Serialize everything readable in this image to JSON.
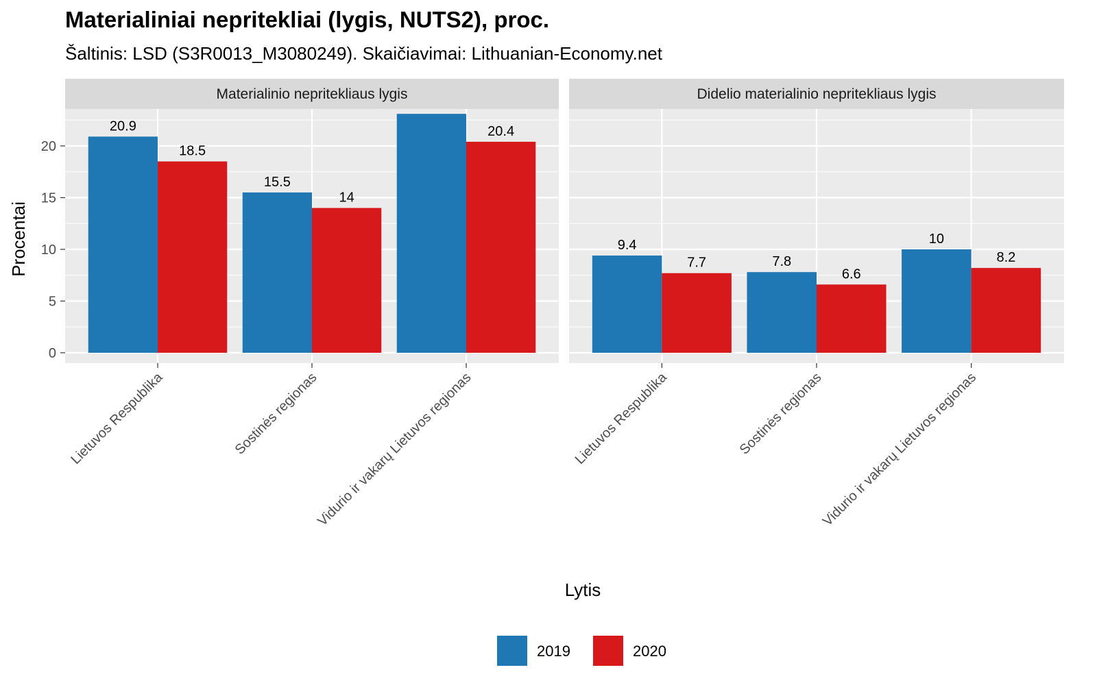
{
  "chart_data": {
    "type": "bar",
    "title": "Materialiniai nepritekliai (lygis, NUTS2), proc.",
    "subtitle": "Šaltinis: LSD (S3R0013_M3080249). Skaičiavimai: Lithuanian-Economy.net",
    "xlabel": "Lytis",
    "ylabel": "Procentai",
    "ylim": [
      0,
      23.1
    ],
    "yticks": [
      0,
      5,
      10,
      15,
      20
    ],
    "grid": true,
    "legend_position": "bottom",
    "categories": [
      "Lietuvos Respublika",
      "Sostinės regionas",
      "Vidurio ir vakarų Lietuvos regionas"
    ],
    "series_names": [
      "2019",
      "2020"
    ],
    "colors": {
      "2019": "#1f78b4",
      "2020": "#d7191c"
    },
    "panels": [
      {
        "strip": "Materialinio nepritekliaus lygis",
        "series": [
          {
            "name": "2019",
            "values": [
              20.9,
              15.5,
              23.1
            ]
          },
          {
            "name": "2020",
            "values": [
              18.5,
              14,
              20.4
            ]
          }
        ]
      },
      {
        "strip": "Didelio materialinio nepritekliaus lygis",
        "series": [
          {
            "name": "2019",
            "values": [
              9.4,
              7.8,
              10
            ]
          },
          {
            "name": "2020",
            "values": [
              7.7,
              6.6,
              8.2
            ]
          }
        ]
      }
    ]
  }
}
